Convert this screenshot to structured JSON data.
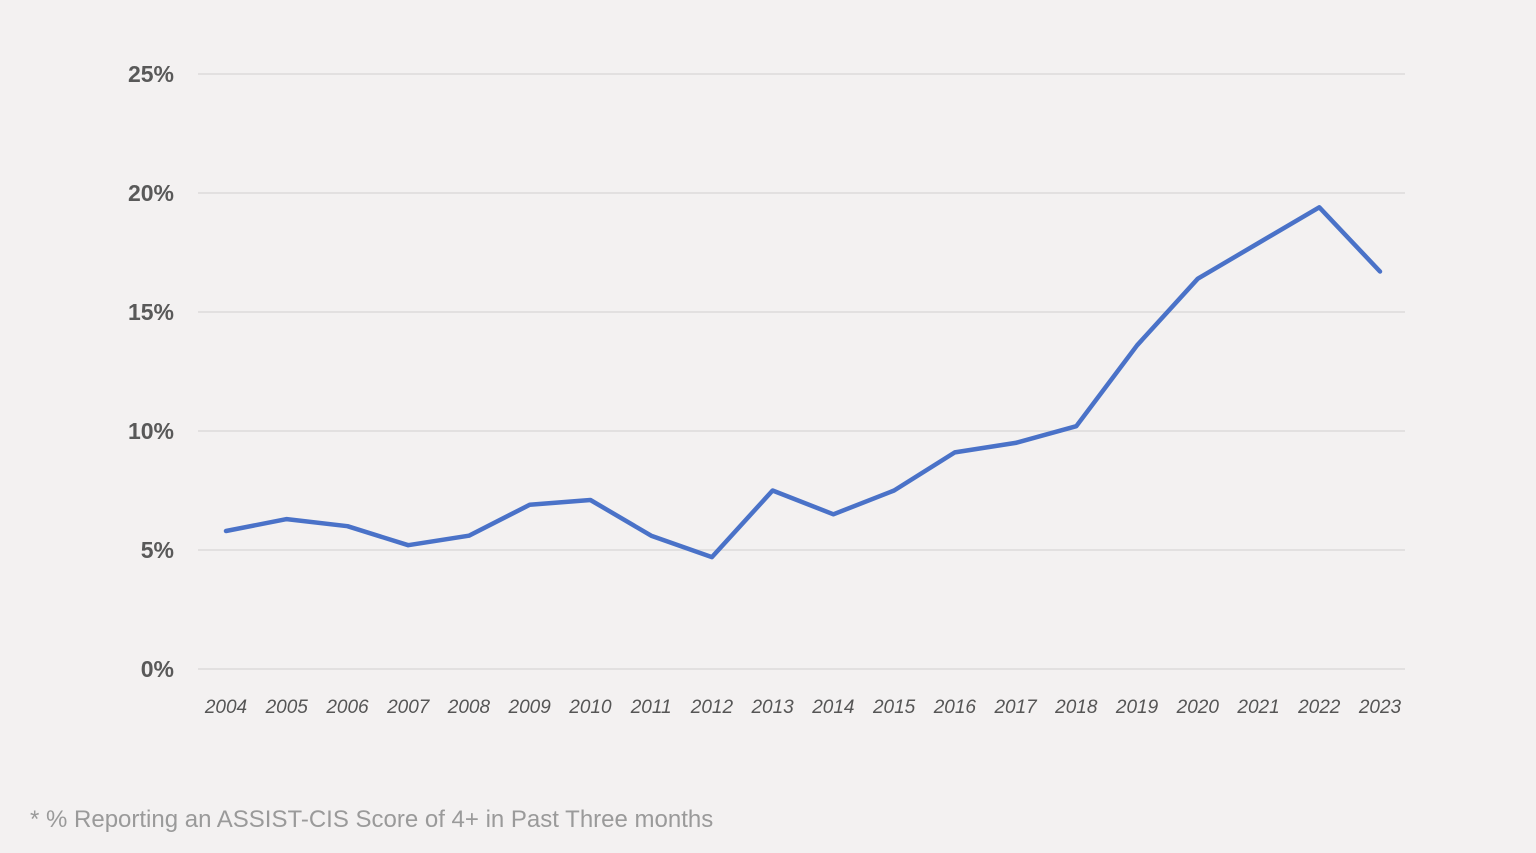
{
  "footnote": "* % Reporting an ASSIST-CIS Score of 4+ in Past Three months",
  "colors": {
    "line": "#4a72c8",
    "background": "#f3f1f1",
    "grid": "#dcdada"
  },
  "chart_data": {
    "type": "line",
    "title": "",
    "xlabel": "",
    "ylabel": "",
    "x": [
      "2004",
      "2005",
      "2006",
      "2007",
      "2008",
      "2009",
      "2010",
      "2011",
      "2012",
      "2013",
      "2014",
      "2015",
      "2016",
      "2017",
      "2018",
      "2019",
      "2020",
      "2021",
      "2022",
      "2023"
    ],
    "series": [
      {
        "values": [
          5.8,
          6.3,
          6.0,
          5.2,
          5.6,
          6.9,
          7.1,
          5.6,
          4.7,
          7.5,
          6.5,
          7.5,
          9.1,
          9.5,
          10.2,
          13.6,
          16.4,
          17.9,
          19.4,
          16.7
        ]
      }
    ],
    "ylim": [
      0,
      25
    ],
    "yticks": [
      0,
      5,
      10,
      15,
      20,
      25
    ],
    "ytick_labels": [
      "0%",
      "5%",
      "10%",
      "15%",
      "20%",
      "25%"
    ],
    "grid": true,
    "legend": "none"
  }
}
